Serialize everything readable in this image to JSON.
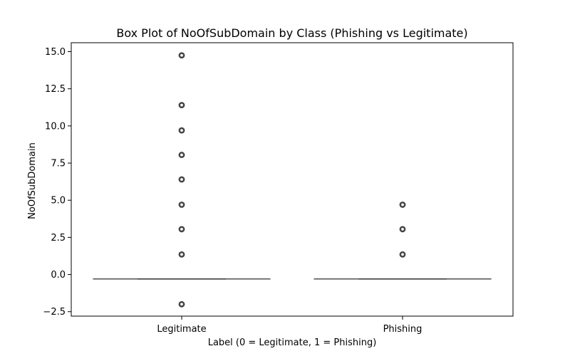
{
  "chart_data": {
    "type": "box",
    "title": "Box Plot of NoOfSubDomain by Class (Phishing vs Legitimate)",
    "xlabel": "Label (0 = Legitimate, 1 = Phishing)",
    "ylabel": "NoOfSubDomain",
    "ylim": [
      -2.8,
      15.6
    ],
    "yticks": [
      -2.5,
      0.0,
      2.5,
      5.0,
      7.5,
      10.0,
      12.5,
      15.0
    ],
    "ytick_labels": [
      "−2.5",
      "0.0",
      "2.5",
      "5.0",
      "7.5",
      "10.0",
      "12.5",
      "15.0"
    ],
    "categories": [
      "Legitimate",
      "Phishing"
    ],
    "grid": false,
    "series": [
      {
        "category": "Legitimate",
        "q1": -0.3,
        "median": -0.3,
        "q3": -0.3,
        "whisker_low": -0.3,
        "whisker_high": -0.3,
        "outliers": [
          -2.0,
          1.35,
          3.05,
          4.7,
          6.4,
          8.05,
          9.7,
          11.4,
          14.75
        ]
      },
      {
        "category": "Phishing",
        "q1": -0.3,
        "median": -0.3,
        "q3": -0.3,
        "whisker_low": -0.3,
        "whisker_high": -0.3,
        "outliers": [
          1.35,
          3.05,
          4.7
        ]
      }
    ],
    "colors": {
      "box_line": "#3f3f3f",
      "outlier": "#3f3f3f",
      "axis": "#000000"
    }
  }
}
